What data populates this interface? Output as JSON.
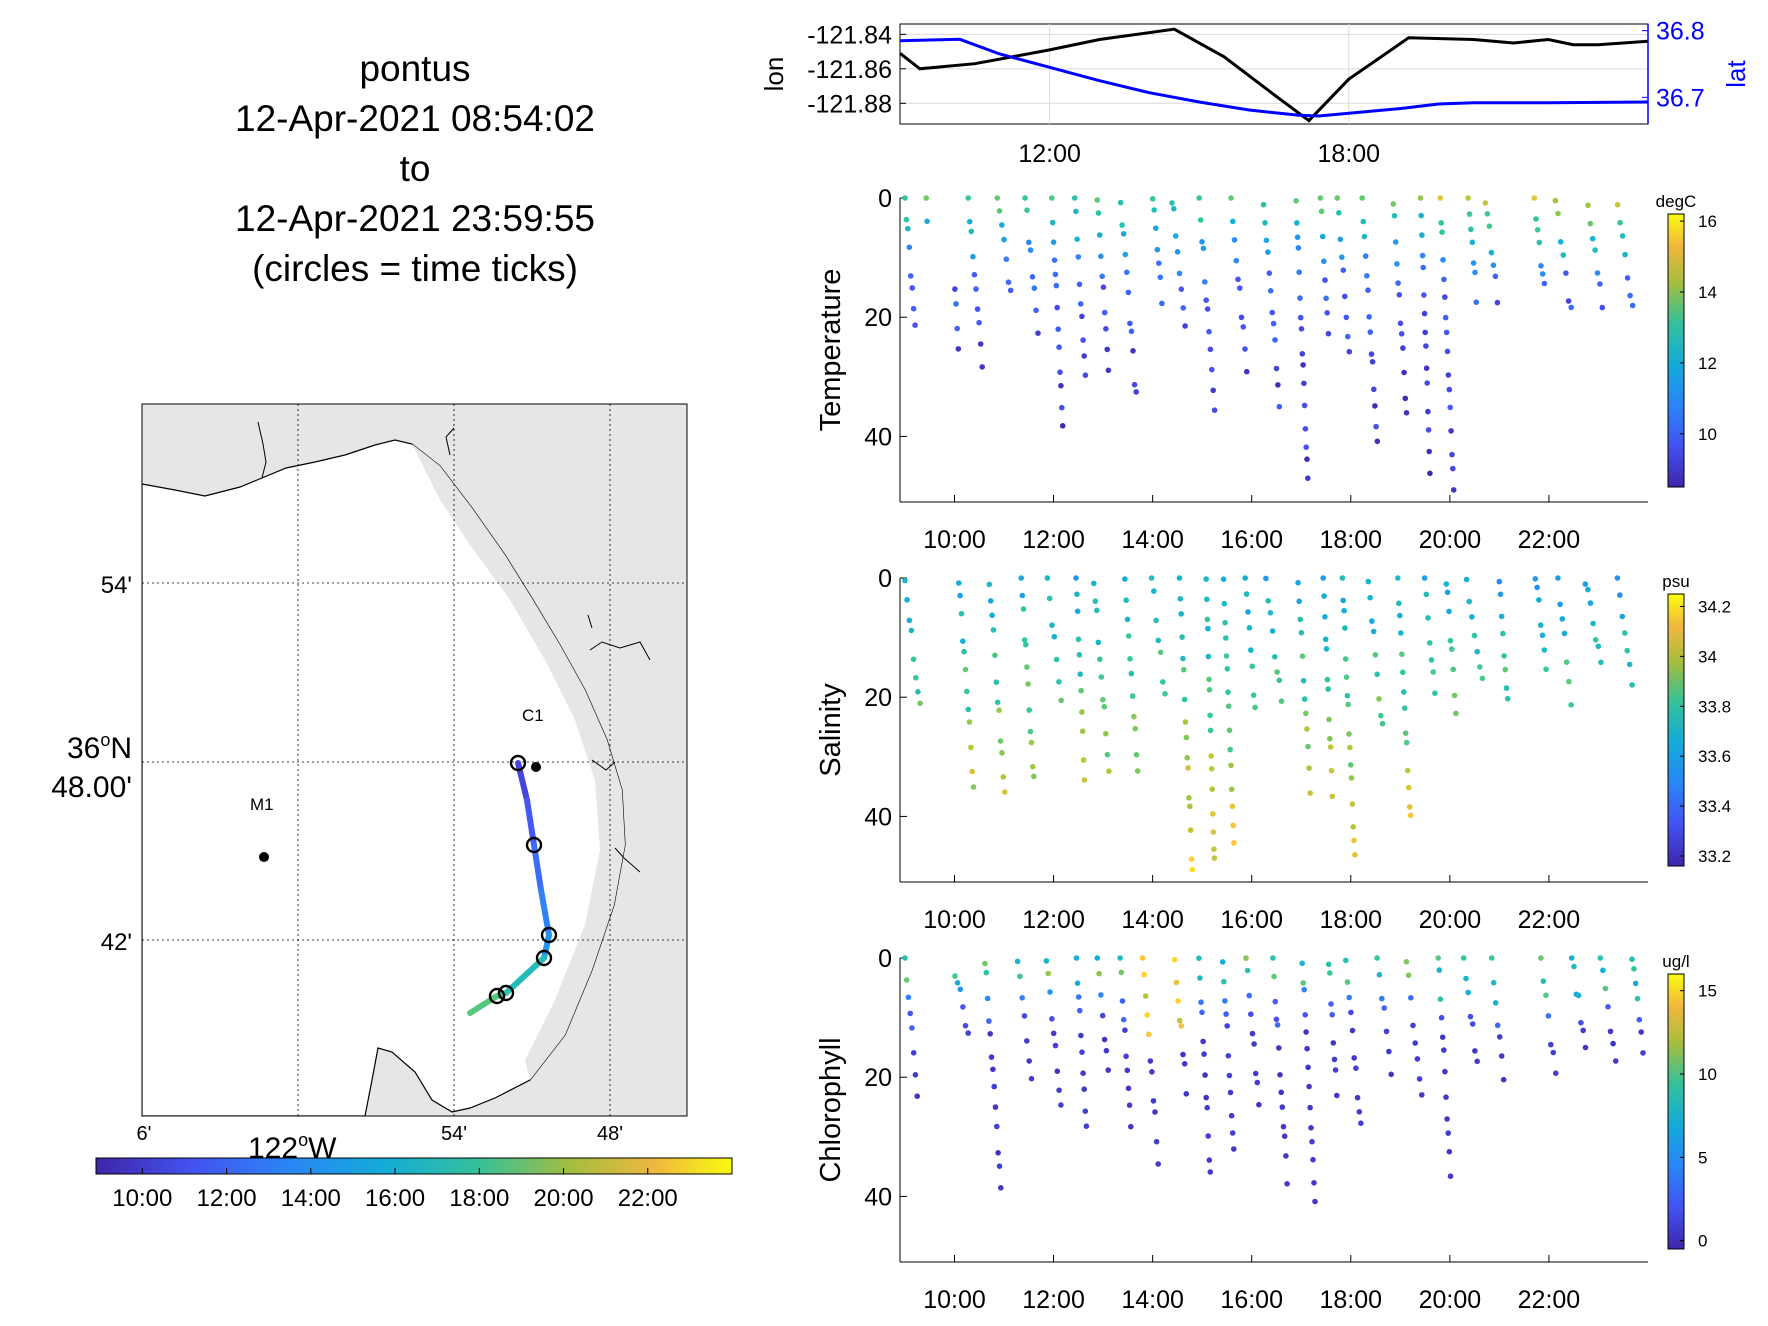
{
  "title": {
    "vehicle": "pontus",
    "start": "12-Apr-2021 08:54:02",
    "to": "to",
    "end": "12-Apr-2021 23:59:55",
    "note": "(circles = time ticks)"
  },
  "map": {
    "lat_labels": [
      "54'",
      "36",
      "48.00'",
      "42'"
    ],
    "lat_deg_symbol": "o",
    "lat_hemisphere": "N",
    "lon_labels": [
      "6'",
      "54'",
      "48'"
    ],
    "lon_main_label": "122",
    "lon_deg_symbol": "o",
    "lon_hemisphere": "W",
    "stations": [
      {
        "name": "M1"
      },
      {
        "name": "C1"
      }
    ],
    "colors": {
      "land": "#e6e6e6",
      "track_start": "#3e3ccf",
      "track_end": "#4ec8a0"
    }
  },
  "map_colorbar": {
    "ticks": [
      "10:00",
      "12:00",
      "14:00",
      "16:00",
      "18:00",
      "20:00",
      "22:00"
    ]
  },
  "chart_data": [
    {
      "type": "line",
      "ylabel_left": "lon",
      "ylabel_right": "lat",
      "x_ticks": [
        "12:00",
        "18:00"
      ],
      "y_ticks_left": [
        "-121.84",
        "-121.86",
        "-121.88"
      ],
      "y_ticks_right": [
        "36.8",
        "36.7"
      ],
      "ylim_left": [
        -121.892,
        -121.834
      ],
      "ylim_right": [
        36.66,
        36.81
      ],
      "xlim_hours": [
        9.0,
        24.0
      ],
      "grid": true,
      "series": [
        {
          "color": "#000000",
          "axis": "left",
          "x": [
            9.0,
            9.4,
            10.5,
            12.0,
            13.0,
            14.5,
            15.5,
            16.5,
            17.2,
            18.0,
            19.2,
            20.5,
            21.3,
            22.0,
            22.5,
            23.0,
            24.0
          ],
          "y": [
            -121.851,
            -121.86,
            -121.857,
            -121.849,
            -121.843,
            -121.837,
            -121.853,
            -121.875,
            -121.89,
            -121.866,
            -121.842,
            -121.843,
            -121.845,
            -121.843,
            -121.846,
            -121.846,
            -121.844
          ]
        },
        {
          "color": "#0000ff",
          "axis": "right",
          "x": [
            9.0,
            10.2,
            11.0,
            12.0,
            13.0,
            14.0,
            15.0,
            16.0,
            17.0,
            17.4,
            18.0,
            19.0,
            19.8,
            20.5,
            22.0,
            24.0
          ],
          "y": [
            36.785,
            36.787,
            36.765,
            36.745,
            36.725,
            36.707,
            36.693,
            36.681,
            36.673,
            36.672,
            36.676,
            36.683,
            36.69,
            36.692,
            36.692,
            36.693
          ]
        }
      ]
    },
    {
      "type": "scatter",
      "ylabel": "Temperature",
      "colorbar_unit": "degC",
      "colorbar_ticks": [
        "16",
        "14",
        "12",
        "10"
      ],
      "clim": [
        8.5,
        16.2
      ],
      "y_ticks": [
        "0",
        "20",
        "40"
      ],
      "ylim": [
        0,
        51
      ],
      "x_ticks": [
        "10:00",
        "12:00",
        "14:00",
        "16:00",
        "18:00",
        "20:00",
        "22:00"
      ],
      "xlim_hours": [
        8.9,
        24.0
      ]
    },
    {
      "type": "scatter",
      "ylabel": "Salinity",
      "colorbar_unit": "psu",
      "colorbar_ticks": [
        "34.2",
        "34",
        "33.8",
        "33.6",
        "33.4",
        "33.2"
      ],
      "clim": [
        33.16,
        34.25
      ],
      "y_ticks": [
        "0",
        "20",
        "40"
      ],
      "ylim": [
        0,
        51
      ],
      "x_ticks": [
        "10:00",
        "12:00",
        "14:00",
        "16:00",
        "18:00",
        "20:00",
        "22:00"
      ],
      "xlim_hours": [
        8.9,
        24.0
      ]
    },
    {
      "type": "scatter",
      "ylabel": "Chlorophyll",
      "colorbar_unit": "ug/l",
      "colorbar_ticks": [
        "15",
        "10",
        "5",
        "0"
      ],
      "clim": [
        -0.5,
        16
      ],
      "y_ticks": [
        "0",
        "20",
        "40"
      ],
      "ylim": [
        0,
        51
      ],
      "x_ticks": [
        "10:00",
        "12:00",
        "14:00",
        "16:00",
        "18:00",
        "20:00",
        "22:00"
      ],
      "xlim_hours": [
        8.9,
        24.0
      ]
    }
  ]
}
